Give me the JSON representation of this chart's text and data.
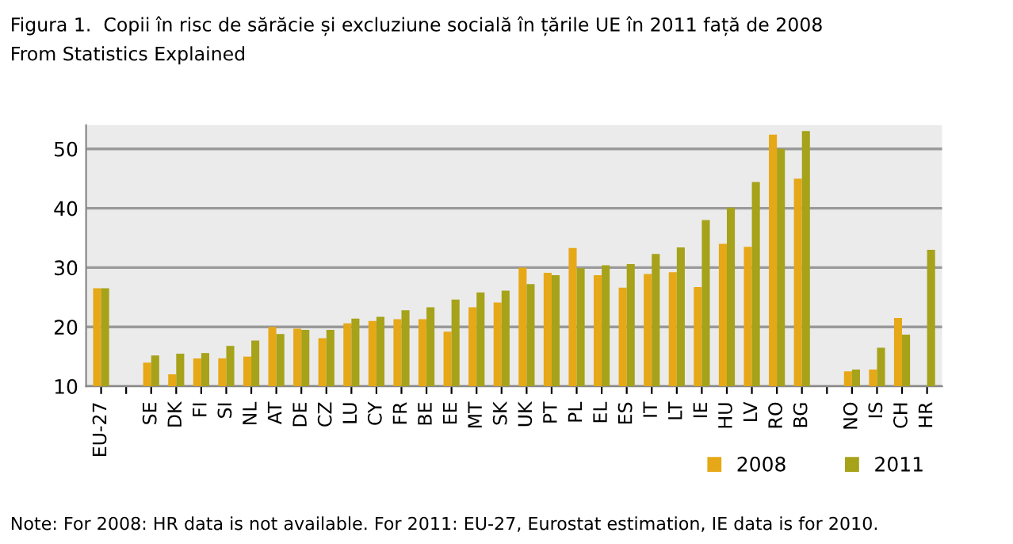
{
  "chart_data": {
    "type": "bar",
    "title": "Figura 1.  Copii în risc de sărăcie și excluziune socială în țările UE în 2011 față de 2008",
    "subtitle": "From Statistics Explained",
    "categories": [
      "EU-27",
      null,
      "SE",
      "DK",
      "FI",
      "SI",
      "NL",
      "AT",
      "DE",
      "CZ",
      "LU",
      "CY",
      "FR",
      "BE",
      "EE",
      "MT",
      "SK",
      "UK",
      "PT",
      "PL",
      "EL",
      "ES",
      "IT",
      "LT",
      "IE",
      "HU",
      "LV",
      "RO",
      "BG",
      null,
      "NO",
      "IS",
      "CH",
      "HR"
    ],
    "series": [
      {
        "name": "2008",
        "color": "#e6a817",
        "values": [
          26.5,
          null,
          14,
          12,
          14.7,
          14.7,
          15,
          20,
          19.7,
          18.1,
          20.6,
          21,
          21.3,
          21.3,
          19.2,
          23.3,
          24.1,
          30,
          29.1,
          33.3,
          28.7,
          26.6,
          28.9,
          29.2,
          26.7,
          34,
          33.5,
          52.4,
          45,
          null,
          12.5,
          12.8,
          21.5,
          null
        ]
      },
      {
        "name": "2011",
        "color": "#a6a21a",
        "values": [
          26.5,
          null,
          15.2,
          15.5,
          15.6,
          16.8,
          17.7,
          18.8,
          19.5,
          19.5,
          21.4,
          21.7,
          22.8,
          23.3,
          24.6,
          25.8,
          26.1,
          27.2,
          28.7,
          29.9,
          30.4,
          30.6,
          32.3,
          33.4,
          38,
          40.1,
          44.4,
          50,
          53,
          null,
          12.8,
          16.5,
          18.7,
          33
        ]
      }
    ],
    "ylim": [
      10,
      54
    ],
    "yticks": [
      10,
      20,
      30,
      40,
      50
    ],
    "grid": "y",
    "legend": "bottom right",
    "annotations": [
      "Note: For 2008: HR data is not available. For 2011: EU-27, Eurostat estimation, IE data is for 2010."
    ]
  }
}
